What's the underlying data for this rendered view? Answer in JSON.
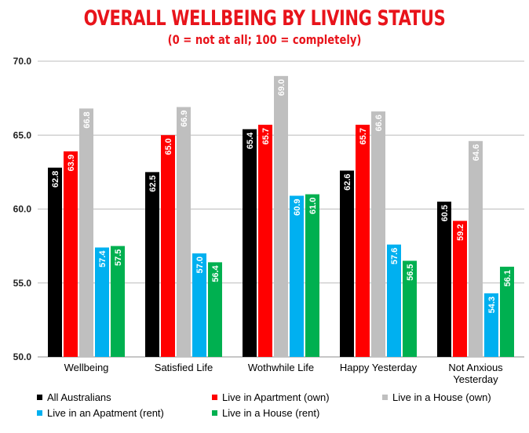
{
  "chart_data": {
    "type": "bar",
    "title": "OVERALL WELLBEING BY LIVING STATUS",
    "subtitle": "(0 = not at all; 100 = completely)",
    "categories": [
      "Wellbeing",
      "Satisfied Life",
      "Wothwhile Life",
      "Happy Yesterday",
      "Not Anxious Yesterday"
    ],
    "category_lines": [
      [
        "Wellbeing"
      ],
      [
        "Satisfied Life"
      ],
      [
        "Wothwhile Life"
      ],
      [
        "Happy Yesterday"
      ],
      [
        "Not Anxious",
        "Yesterday"
      ]
    ],
    "series": [
      {
        "name": "All Australians",
        "color": "#000000",
        "values": [
          62.8,
          62.5,
          65.4,
          62.6,
          60.5
        ]
      },
      {
        "name": "Live in Apartment (own)",
        "color": "#ff0000",
        "values": [
          63.9,
          65.0,
          65.7,
          65.7,
          59.2
        ]
      },
      {
        "name": "Live in a House (own)",
        "color": "#bfbfbf",
        "values": [
          66.8,
          66.9,
          69.0,
          66.6,
          64.6
        ]
      },
      {
        "name": "Live in an Apatment (rent)",
        "color": "#00b0f0",
        "values": [
          57.4,
          57.0,
          60.9,
          57.6,
          54.3
        ]
      },
      {
        "name": "Live in a House (rent)",
        "color": "#00b050",
        "values": [
          57.5,
          56.4,
          61.0,
          56.5,
          56.1
        ]
      }
    ],
    "ylim": [
      50,
      70
    ],
    "yticks": [
      "50.0",
      "55.0",
      "60.0",
      "65.0",
      "70.0"
    ],
    "grid": true,
    "legend_position": "bottom",
    "xlabel": "",
    "ylabel": ""
  }
}
